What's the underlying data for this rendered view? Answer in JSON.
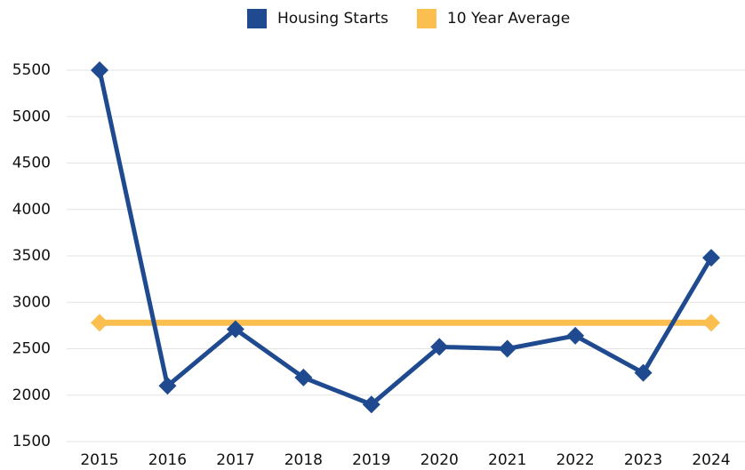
{
  "chart_data": {
    "type": "line",
    "categories": [
      "2015",
      "2016",
      "2017",
      "2018",
      "2019",
      "2020",
      "2021",
      "2022",
      "2023",
      "2024"
    ],
    "series": [
      {
        "name": "Housing Starts",
        "color": "#1f4a8f",
        "values": [
          5500,
          2100,
          2710,
          2190,
          1900,
          2520,
          2500,
          2640,
          2240,
          3480
        ]
      },
      {
        "name": "10 Year Average",
        "color": "#fbbf50",
        "values": [
          2780,
          2780,
          2780,
          2780,
          2780,
          2780,
          2780,
          2780,
          2780,
          2780
        ]
      }
    ],
    "ylim": [
      1500,
      5500
    ],
    "yticks": [
      1500,
      2000,
      2500,
      3000,
      3500,
      4000,
      4500,
      5000,
      5500
    ],
    "grid": true,
    "legend": "top"
  }
}
